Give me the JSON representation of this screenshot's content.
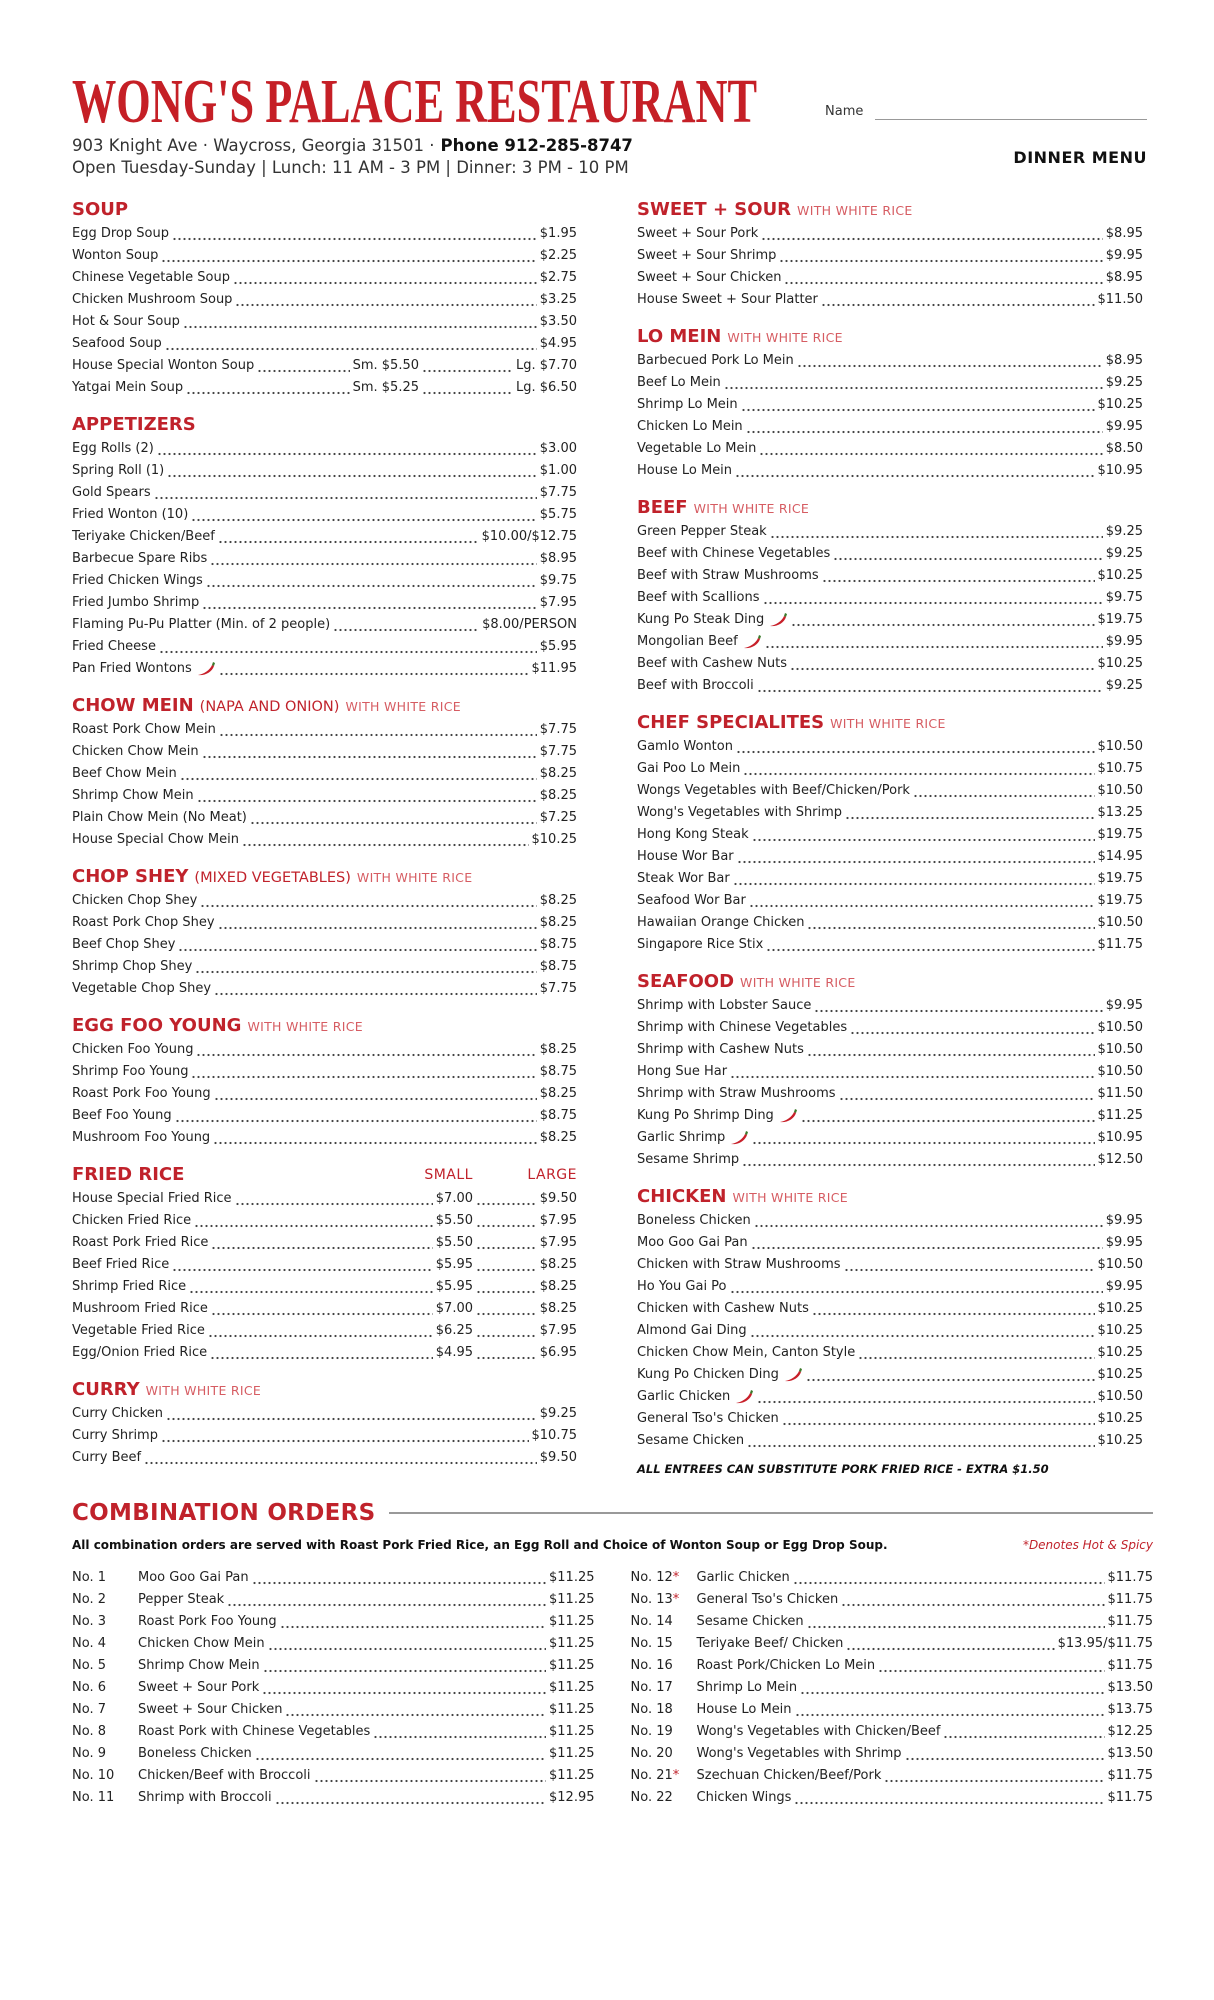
{
  "header": {
    "title": "WONG'S PALACE RESTAURANT",
    "address": "903 Knight Ave · Waycross, Georgia 31501 ·",
    "phone": "Phone 912-285-8747",
    "hours": "Open Tuesday-Sunday | Lunch: 11 AM - 3 PM | Dinner: 3 PM - 10 PM",
    "name_label": "Name",
    "menu_label": "DINNER MENU"
  },
  "left_column": [
    {
      "title": "SOUP",
      "items": [
        {
          "name": "Egg Drop Soup",
          "prices": [
            "$1.95"
          ]
        },
        {
          "name": "Wonton Soup",
          "prices": [
            "$2.25"
          ]
        },
        {
          "name": "Chinese Vegetable Soup",
          "prices": [
            "$2.75"
          ]
        },
        {
          "name": "Chicken Mushroom Soup",
          "prices": [
            "$3.25"
          ]
        },
        {
          "name": "Hot & Sour Soup",
          "prices": [
            "$3.50"
          ]
        },
        {
          "name": "Seafood Soup",
          "prices": [
            "$4.95"
          ]
        },
        {
          "name": "House Special Wonton Soup",
          "prices": [
            "Sm. $5.50",
            "Lg. $7.70"
          ]
        },
        {
          "name": "Yatgai Mein Soup",
          "prices": [
            "Sm. $5.25",
            "Lg. $6.50"
          ]
        }
      ]
    },
    {
      "title": "APPETIZERS",
      "items": [
        {
          "name": "Egg Rolls (2)",
          "prices": [
            "$3.00"
          ]
        },
        {
          "name": "Spring Roll (1)",
          "prices": [
            "$1.00"
          ]
        },
        {
          "name": "Gold Spears",
          "prices": [
            "$7.75"
          ]
        },
        {
          "name": "Fried Wonton (10)",
          "prices": [
            "$5.75"
          ]
        },
        {
          "name": "Teriyake Chicken/Beef",
          "prices": [
            "$10.00/$12.75"
          ]
        },
        {
          "name": "Barbecue Spare Ribs",
          "prices": [
            "$8.95"
          ]
        },
        {
          "name": "Fried Chicken Wings",
          "prices": [
            "$9.75"
          ]
        },
        {
          "name": "Fried Jumbo Shrimp",
          "prices": [
            "$7.95"
          ]
        },
        {
          "name": "Flaming Pu-Pu Platter (Min. of 2 people)",
          "prices": [
            "$8.00/PERSON"
          ]
        },
        {
          "name": "Fried Cheese",
          "prices": [
            "$5.95"
          ]
        },
        {
          "name": "Pan Fried Wontons",
          "prices": [
            "$11.95"
          ],
          "spicy": true
        }
      ]
    },
    {
      "title": "CHOW MEIN",
      "qualifier": "(NAPA AND ONION)",
      "subtitle": "WITH WHITE RICE",
      "items": [
        {
          "name": "Roast Pork Chow Mein",
          "prices": [
            "$7.75"
          ]
        },
        {
          "name": "Chicken Chow Mein",
          "prices": [
            "$7.75"
          ]
        },
        {
          "name": "Beef Chow Mein",
          "prices": [
            "$8.25"
          ]
        },
        {
          "name": "Shrimp Chow Mein",
          "prices": [
            "$8.25"
          ]
        },
        {
          "name": "Plain Chow Mein (No Meat)",
          "prices": [
            "$7.25"
          ]
        },
        {
          "name": "House Special Chow Mein",
          "prices": [
            "$10.25"
          ]
        }
      ]
    },
    {
      "title": "CHOP SHEY",
      "qualifier": "(MIXED VEGETABLES)",
      "subtitle": "WITH WHITE RICE",
      "items": [
        {
          "name": "Chicken Chop Shey",
          "prices": [
            "$8.25"
          ]
        },
        {
          "name": "Roast Pork Chop Shey",
          "prices": [
            "$8.25"
          ]
        },
        {
          "name": "Beef Chop Shey",
          "prices": [
            "$8.75"
          ]
        },
        {
          "name": "Shrimp Chop Shey",
          "prices": [
            "$8.75"
          ]
        },
        {
          "name": "Vegetable Chop Shey",
          "prices": [
            "$7.75"
          ]
        }
      ]
    },
    {
      "title": "EGG FOO YOUNG",
      "subtitle": "WITH WHITE RICE",
      "items": [
        {
          "name": "Chicken Foo Young",
          "prices": [
            "$8.25"
          ]
        },
        {
          "name": "Shrimp Foo Young",
          "prices": [
            "$8.75"
          ]
        },
        {
          "name": "Roast Pork Foo Young",
          "prices": [
            "$8.25"
          ]
        },
        {
          "name": "Beef Foo Young",
          "prices": [
            "$8.75"
          ]
        },
        {
          "name": "Mushroom Foo Young",
          "prices": [
            "$8.25"
          ]
        }
      ]
    },
    {
      "title": "FRIED RICE",
      "columns": [
        "SMALL",
        "LARGE"
      ],
      "items": [
        {
          "name": "House Special Fried Rice",
          "prices": [
            "$7.00",
            "$9.50"
          ]
        },
        {
          "name": "Chicken Fried Rice",
          "prices": [
            "$5.50",
            "$7.95"
          ]
        },
        {
          "name": "Roast Pork Fried Rice",
          "prices": [
            "$5.50",
            "$7.95"
          ]
        },
        {
          "name": "Beef Fried Rice",
          "prices": [
            "$5.95",
            "$8.25"
          ]
        },
        {
          "name": "Shrimp Fried Rice",
          "prices": [
            "$5.95",
            "$8.25"
          ]
        },
        {
          "name": "Mushroom Fried Rice",
          "prices": [
            "$7.00",
            "$8.25"
          ]
        },
        {
          "name": "Vegetable Fried Rice",
          "prices": [
            "$6.25",
            "$7.95"
          ]
        },
        {
          "name": "Egg/Onion Fried Rice",
          "prices": [
            "$4.95",
            "$6.95"
          ]
        }
      ]
    },
    {
      "title": "CURRY",
      "subtitle": "WITH WHITE RICE",
      "items": [
        {
          "name": "Curry Chicken",
          "prices": [
            "$9.25"
          ]
        },
        {
          "name": "Curry Shrimp",
          "prices": [
            "$10.75"
          ]
        },
        {
          "name": "Curry Beef",
          "prices": [
            "$9.50"
          ]
        }
      ]
    }
  ],
  "right_column": [
    {
      "title": "SWEET + SOUR",
      "subtitle": "WITH WHITE RICE",
      "items": [
        {
          "name": "Sweet + Sour Pork",
          "prices": [
            "$8.95"
          ]
        },
        {
          "name": "Sweet + Sour Shrimp",
          "prices": [
            "$9.95"
          ]
        },
        {
          "name": "Sweet + Sour Chicken",
          "prices": [
            "$8.95"
          ]
        },
        {
          "name": "House Sweet + Sour Platter",
          "prices": [
            "$11.50"
          ]
        }
      ]
    },
    {
      "title": "LO MEIN",
      "subtitle": "WITH WHITE RICE",
      "items": [
        {
          "name": "Barbecued Pork Lo Mein",
          "prices": [
            "$8.95"
          ]
        },
        {
          "name": "Beef Lo Mein",
          "prices": [
            "$9.25"
          ]
        },
        {
          "name": "Shrimp Lo Mein",
          "prices": [
            "$10.25"
          ]
        },
        {
          "name": "Chicken Lo Mein",
          "prices": [
            "$9.95"
          ]
        },
        {
          "name": "Vegetable Lo Mein",
          "prices": [
            "$8.50"
          ]
        },
        {
          "name": "House Lo Mein",
          "prices": [
            "$10.95"
          ]
        }
      ]
    },
    {
      "title": "BEEF",
      "subtitle": "WITH WHITE RICE",
      "items": [
        {
          "name": "Green Pepper Steak",
          "prices": [
            "$9.25"
          ]
        },
        {
          "name": "Beef with Chinese Vegetables",
          "prices": [
            "$9.25"
          ]
        },
        {
          "name": "Beef with Straw Mushrooms",
          "prices": [
            "$10.25"
          ]
        },
        {
          "name": "Beef with Scallions",
          "prices": [
            "$9.75"
          ]
        },
        {
          "name": "Kung Po Steak Ding",
          "prices": [
            "$19.75"
          ],
          "spicy": true
        },
        {
          "name": "Mongolian Beef",
          "prices": [
            "$9.95"
          ],
          "spicy": true
        },
        {
          "name": "Beef with Cashew Nuts",
          "prices": [
            "$10.25"
          ]
        },
        {
          "name": "Beef with Broccoli",
          "prices": [
            "$9.25"
          ]
        }
      ]
    },
    {
      "title": "CHEF SPECIALITES",
      "subtitle": "WITH WHITE RICE",
      "items": [
        {
          "name": "Gamlo Wonton",
          "prices": [
            "$10.50"
          ]
        },
        {
          "name": "Gai Poo Lo Mein",
          "prices": [
            "$10.75"
          ]
        },
        {
          "name": "Wongs Vegetables with Beef/Chicken/Pork",
          "prices": [
            "$10.50"
          ]
        },
        {
          "name": "Wong's Vegetables with Shrimp",
          "prices": [
            "$13.25"
          ]
        },
        {
          "name": "Hong Kong Steak",
          "prices": [
            "$19.75"
          ]
        },
        {
          "name": "House Wor Bar",
          "prices": [
            "$14.95"
          ]
        },
        {
          "name": "Steak Wor Bar",
          "prices": [
            "$19.75"
          ]
        },
        {
          "name": "Seafood Wor Bar",
          "prices": [
            "$19.75"
          ]
        },
        {
          "name": "Hawaiian Orange Chicken",
          "prices": [
            "$10.50"
          ]
        },
        {
          "name": "Singapore Rice Stix",
          "prices": [
            "$11.75"
          ]
        }
      ]
    },
    {
      "title": "SEAFOOD",
      "subtitle": "WITH WHITE RICE",
      "items": [
        {
          "name": "Shrimp with Lobster Sauce",
          "prices": [
            "$9.95"
          ]
        },
        {
          "name": "Shrimp with Chinese Vegetables",
          "prices": [
            "$10.50"
          ]
        },
        {
          "name": "Shrimp with Cashew Nuts",
          "prices": [
            "$10.50"
          ]
        },
        {
          "name": "Hong Sue Har",
          "prices": [
            "$10.50"
          ]
        },
        {
          "name": "Shrimp with Straw Mushrooms",
          "prices": [
            "$11.50"
          ]
        },
        {
          "name": "Kung Po Shrimp Ding",
          "prices": [
            "$11.25"
          ],
          "spicy": true
        },
        {
          "name": "Garlic Shrimp",
          "prices": [
            "$10.95"
          ],
          "spicy": true
        },
        {
          "name": "Sesame Shrimp",
          "prices": [
            "$12.50"
          ]
        }
      ]
    },
    {
      "title": "CHICKEN",
      "subtitle": "WITH WHITE RICE",
      "items": [
        {
          "name": "Boneless Chicken",
          "prices": [
            "$9.95"
          ]
        },
        {
          "name": "Moo Goo Gai Pan",
          "prices": [
            "$9.95"
          ]
        },
        {
          "name": "Chicken with Straw Mushrooms",
          "prices": [
            "$10.50"
          ]
        },
        {
          "name": "Ho You Gai Po",
          "prices": [
            "$9.95"
          ]
        },
        {
          "name": "Chicken with Cashew Nuts",
          "prices": [
            "$10.25"
          ]
        },
        {
          "name": "Almond Gai Ding",
          "prices": [
            "$10.25"
          ]
        },
        {
          "name": "Chicken Chow Mein, Canton Style",
          "prices": [
            "$10.25"
          ]
        },
        {
          "name": "Kung Po Chicken Ding",
          "prices": [
            "$10.25"
          ],
          "spicy": true
        },
        {
          "name": "Garlic Chicken",
          "prices": [
            "$10.50"
          ],
          "spicy": true
        },
        {
          "name": "General Tso's Chicken",
          "prices": [
            "$10.25"
          ]
        },
        {
          "name": "Sesame Chicken",
          "prices": [
            "$10.25"
          ]
        }
      ]
    }
  ],
  "footnote": "ALL ENTREES CAN SUBSTITUTE PORK FRIED RICE - EXTRA $1.50",
  "combination": {
    "title": "COMBINATION ORDERS",
    "intro": "All combination orders are served with Roast Pork Fried Rice, an Egg Roll and Choice of Wonton Soup or Egg Drop Soup.",
    "note": "*Denotes Hot & Spicy",
    "columns": [
      [
        {
          "no": "No. 1",
          "name": "Moo Goo Gai Pan",
          "price": "$11.25"
        },
        {
          "no": "No. 2",
          "name": "Pepper Steak",
          "price": "$11.25"
        },
        {
          "no": "No. 3",
          "name": "Roast Pork Foo Young",
          "price": "$11.25"
        },
        {
          "no": "No. 4",
          "name": "Chicken Chow Mein",
          "price": "$11.25"
        },
        {
          "no": "No. 5",
          "name": "Shrimp Chow Mein",
          "price": "$11.25"
        },
        {
          "no": "No. 6",
          "name": "Sweet + Sour Pork",
          "price": "$11.25"
        },
        {
          "no": "No. 7",
          "name": "Sweet + Sour Chicken",
          "price": "$11.25"
        },
        {
          "no": "No. 8",
          "name": "Roast Pork with Chinese Vegetables",
          "price": "$11.25"
        },
        {
          "no": "No. 9",
          "name": "Boneless Chicken",
          "price": "$11.25"
        },
        {
          "no": "No. 10",
          "name": "Chicken/Beef with Broccoli",
          "price": "$11.25"
        },
        {
          "no": "No. 11",
          "name": "Shrimp with Broccoli",
          "price": "$12.95"
        }
      ],
      [
        {
          "no": "No. 12",
          "star": "*",
          "name": "Garlic Chicken",
          "price": "$11.75"
        },
        {
          "no": "No. 13",
          "star": "*",
          "name": "General Tso's Chicken",
          "price": "$11.75"
        },
        {
          "no": "No. 14",
          "name": "Sesame Chicken",
          "price": "$11.75"
        },
        {
          "no": "No. 15",
          "name": "Teriyake Beef/ Chicken",
          "price": "$13.95/$11.75"
        },
        {
          "no": "No. 16",
          "name": "Roast Pork/Chicken Lo Mein",
          "price": "$11.75"
        },
        {
          "no": "No. 17",
          "name": "Shrimp Lo Mein",
          "price": "$13.50"
        },
        {
          "no": "No. 18",
          "name": "House Lo Mein",
          "price": "$13.75"
        },
        {
          "no": "No. 19",
          "name": "Wong's Vegetables with Chicken/Beef",
          "price": "$12.25"
        },
        {
          "no": "No. 20",
          "name": "Wong's Vegetables with Shrimp",
          "price": "$13.50"
        },
        {
          "no": "No. 21",
          "star": "*",
          "name": "Szechuan Chicken/Beef/Pork",
          "price": "$11.75"
        },
        {
          "no": "No. 22",
          "name": "Chicken Wings",
          "price": "$11.75"
        }
      ]
    ]
  }
}
